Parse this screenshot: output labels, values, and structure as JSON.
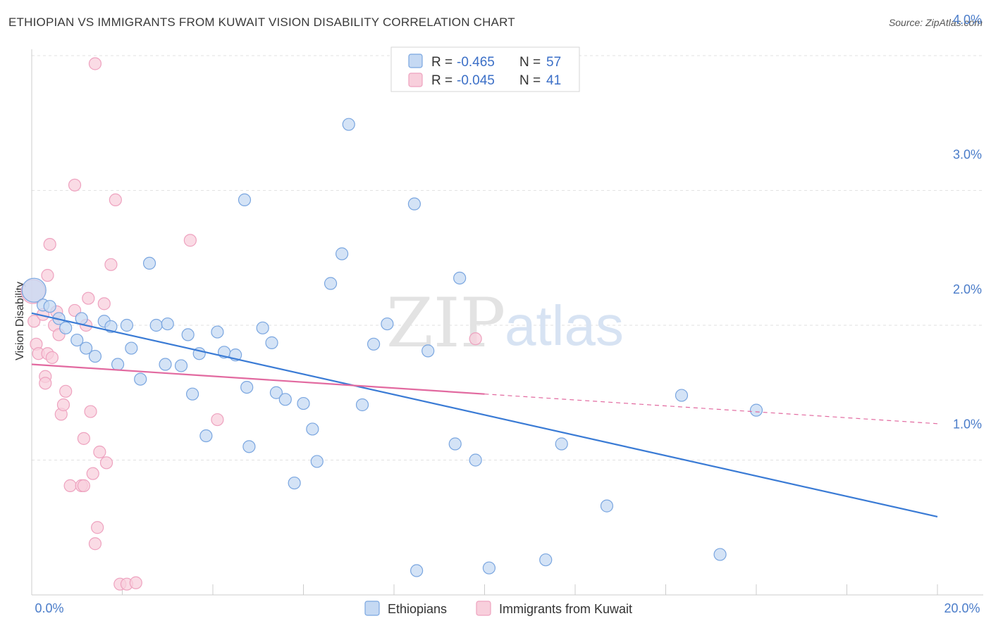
{
  "title": "ETHIOPIAN VS IMMIGRANTS FROM KUWAIT VISION DISABILITY CORRELATION CHART",
  "source": "Source: ZipAtlas.com",
  "watermark": {
    "zip": "ZIP",
    "atlas": "atlas"
  },
  "colors": {
    "blue": "#3a7bd5",
    "blue_fill": "#c5d9f3",
    "pink": "#e26aa0",
    "pink_fill": "#f8cfdc",
    "grid": "#e2e2e2",
    "tick": "#4a7cc9"
  },
  "legend": {
    "r_label": "R =",
    "n_label": "N =",
    "rows": [
      {
        "r": "-0.465",
        "n": "57",
        "color": "blue"
      },
      {
        "r": "-0.045",
        "n": "41",
        "color": "pink"
      }
    ]
  },
  "bottom_legend": [
    "Ethiopians",
    "Immigrants from Kuwait"
  ],
  "chart_data": {
    "type": "scatter",
    "ylabel": "Vision Disability",
    "xlim": [
      0,
      20
    ],
    "ylim": [
      0,
      4.2
    ],
    "x_tick_labels": [
      "0.0%",
      "20.0%"
    ],
    "y_ticks": [
      {
        "value": 1.0,
        "label": "1.0%"
      },
      {
        "value": 2.0,
        "label": "2.0%"
      },
      {
        "value": 3.0,
        "label": "3.0%"
      },
      {
        "value": 4.0,
        "label": "4.0%"
      }
    ],
    "grid": true,
    "series": [
      {
        "name": "Ethiopians",
        "color": "blue",
        "trend": {
          "x0": 0.0,
          "y0": 2.09,
          "x1": 20.0,
          "y1": 0.58,
          "solid_until": 20.0
        },
        "points": [
          {
            "x": 0.05,
            "y": 2.26,
            "big": true
          },
          {
            "x": 0.25,
            "y": 2.15
          },
          {
            "x": 0.4,
            "y": 2.14
          },
          {
            "x": 0.6,
            "y": 2.05
          },
          {
            "x": 0.75,
            "y": 1.98
          },
          {
            "x": 1.0,
            "y": 1.89
          },
          {
            "x": 1.1,
            "y": 2.05
          },
          {
            "x": 1.2,
            "y": 1.83
          },
          {
            "x": 1.4,
            "y": 1.77
          },
          {
            "x": 1.6,
            "y": 2.03
          },
          {
            "x": 1.75,
            "y": 1.99
          },
          {
            "x": 1.9,
            "y": 1.71
          },
          {
            "x": 2.1,
            "y": 2.0
          },
          {
            "x": 2.2,
            "y": 1.83
          },
          {
            "x": 2.4,
            "y": 1.6
          },
          {
            "x": 2.6,
            "y": 2.46
          },
          {
            "x": 2.75,
            "y": 2.0
          },
          {
            "x": 3.0,
            "y": 2.01
          },
          {
            "x": 2.95,
            "y": 1.71
          },
          {
            "x": 3.3,
            "y": 1.7
          },
          {
            "x": 3.45,
            "y": 1.93
          },
          {
            "x": 3.55,
            "y": 1.49
          },
          {
            "x": 3.7,
            "y": 1.79
          },
          {
            "x": 3.85,
            "y": 1.18
          },
          {
            "x": 4.1,
            "y": 1.95
          },
          {
            "x": 4.25,
            "y": 1.8
          },
          {
            "x": 4.5,
            "y": 1.78
          },
          {
            "x": 4.7,
            "y": 2.93
          },
          {
            "x": 4.75,
            "y": 1.54
          },
          {
            "x": 4.8,
            "y": 1.1
          },
          {
            "x": 5.1,
            "y": 1.98
          },
          {
            "x": 5.3,
            "y": 1.87
          },
          {
            "x": 5.4,
            "y": 1.5
          },
          {
            "x": 5.6,
            "y": 1.45
          },
          {
            "x": 5.8,
            "y": 0.83
          },
          {
            "x": 6.0,
            "y": 1.42
          },
          {
            "x": 6.2,
            "y": 1.23
          },
          {
            "x": 6.3,
            "y": 0.99
          },
          {
            "x": 6.6,
            "y": 2.31
          },
          {
            "x": 6.85,
            "y": 2.53
          },
          {
            "x": 7.0,
            "y": 3.49
          },
          {
            "x": 7.3,
            "y": 1.41
          },
          {
            "x": 7.55,
            "y": 1.86
          },
          {
            "x": 7.85,
            "y": 2.01
          },
          {
            "x": 8.5,
            "y": 0.18
          },
          {
            "x": 8.45,
            "y": 2.9
          },
          {
            "x": 8.75,
            "y": 1.81
          },
          {
            "x": 9.35,
            "y": 1.12
          },
          {
            "x": 9.45,
            "y": 2.35
          },
          {
            "x": 9.8,
            "y": 1.0
          },
          {
            "x": 10.1,
            "y": 0.2
          },
          {
            "x": 11.35,
            "y": 0.26
          },
          {
            "x": 11.7,
            "y": 1.12
          },
          {
            "x": 12.7,
            "y": 0.66
          },
          {
            "x": 14.35,
            "y": 1.48
          },
          {
            "x": 15.2,
            "y": 0.3
          },
          {
            "x": 16.0,
            "y": 1.37
          }
        ]
      },
      {
        "name": "Immigrants from Kuwait",
        "color": "pink",
        "trend": {
          "x0": 0.0,
          "y0": 1.71,
          "x1": 20.0,
          "y1": 1.27,
          "solid_until": 10.0
        },
        "points": [
          {
            "x": 0.03,
            "y": 2.25,
            "big": true
          },
          {
            "x": 0.05,
            "y": 2.03
          },
          {
            "x": 0.1,
            "y": 1.86
          },
          {
            "x": 0.15,
            "y": 1.79
          },
          {
            "x": 0.25,
            "y": 2.08
          },
          {
            "x": 0.3,
            "y": 1.62
          },
          {
            "x": 0.35,
            "y": 1.79
          },
          {
            "x": 0.3,
            "y": 1.57
          },
          {
            "x": 0.35,
            "y": 2.37
          },
          {
            "x": 0.4,
            "y": 2.6
          },
          {
            "x": 0.45,
            "y": 1.76
          },
          {
            "x": 0.5,
            "y": 2.0
          },
          {
            "x": 0.55,
            "y": 2.1
          },
          {
            "x": 0.6,
            "y": 1.93
          },
          {
            "x": 0.65,
            "y": 1.34
          },
          {
            "x": 0.7,
            "y": 1.41
          },
          {
            "x": 0.75,
            "y": 1.51
          },
          {
            "x": 0.85,
            "y": 0.81
          },
          {
            "x": 0.95,
            "y": 3.04
          },
          {
            "x": 0.95,
            "y": 2.11
          },
          {
            "x": 1.1,
            "y": 0.81
          },
          {
            "x": 1.15,
            "y": 1.16
          },
          {
            "x": 1.15,
            "y": 0.81
          },
          {
            "x": 1.2,
            "y": 2.0
          },
          {
            "x": 1.25,
            "y": 2.2
          },
          {
            "x": 1.3,
            "y": 1.36
          },
          {
            "x": 1.35,
            "y": 0.9
          },
          {
            "x": 1.4,
            "y": 0.38
          },
          {
            "x": 1.4,
            "y": 3.94
          },
          {
            "x": 1.45,
            "y": 0.5
          },
          {
            "x": 1.5,
            "y": 1.06
          },
          {
            "x": 1.6,
            "y": 2.16
          },
          {
            "x": 1.65,
            "y": 0.98
          },
          {
            "x": 1.75,
            "y": 2.45
          },
          {
            "x": 1.85,
            "y": 2.93
          },
          {
            "x": 1.95,
            "y": 0.08
          },
          {
            "x": 2.1,
            "y": 0.08
          },
          {
            "x": 2.3,
            "y": 0.09
          },
          {
            "x": 3.5,
            "y": 2.63
          },
          {
            "x": 4.1,
            "y": 1.3
          },
          {
            "x": 9.8,
            "y": 1.9
          }
        ]
      }
    ]
  }
}
